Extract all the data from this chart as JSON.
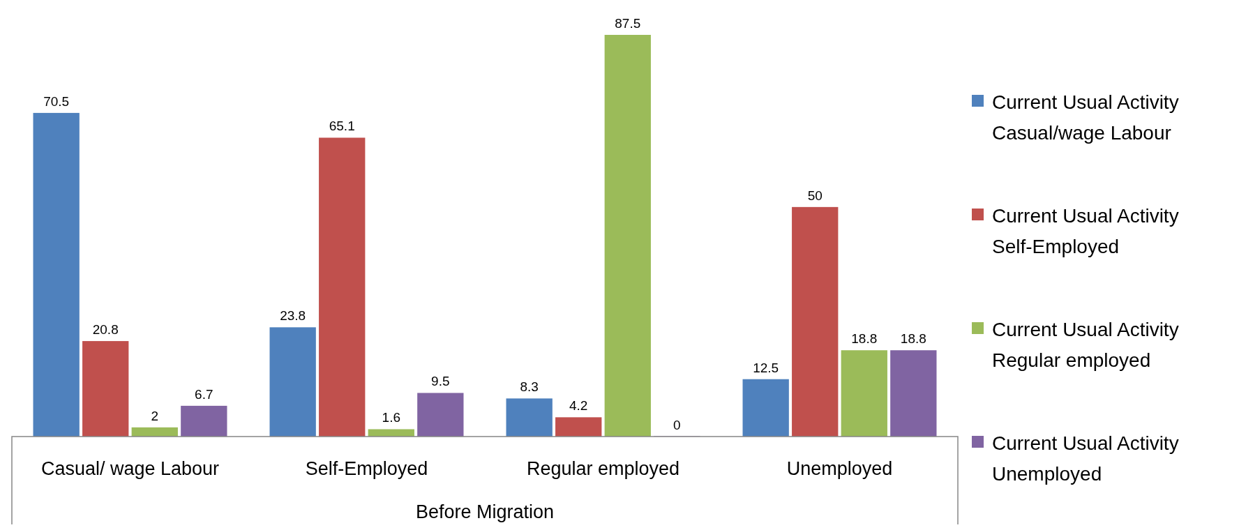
{
  "chart_data": {
    "type": "bar",
    "xlabel": "Before Migration",
    "categories": [
      "Casual/ wage Labour",
      "Self-Employed",
      "Regular employed",
      "Unemployed"
    ],
    "series": [
      {
        "name": "Current Usual Activity Casual/wage Labour",
        "color": "#4f81bd",
        "values": [
          70.5,
          23.8,
          8.3,
          12.5
        ]
      },
      {
        "name": "Current Usual Activity Self-Employed",
        "color": "#c0504d",
        "values": [
          20.8,
          65.1,
          4.2,
          50
        ]
      },
      {
        "name": "Current Usual Activity Regular employed",
        "color": "#9bbb59",
        "values": [
          2,
          1.6,
          87.5,
          18.8
        ]
      },
      {
        "name": "Current Usual Activity Unemployed",
        "color": "#8064a2",
        "values": [
          6.7,
          9.5,
          0,
          18.8
        ]
      }
    ],
    "data_labels": true,
    "legend": "right"
  }
}
